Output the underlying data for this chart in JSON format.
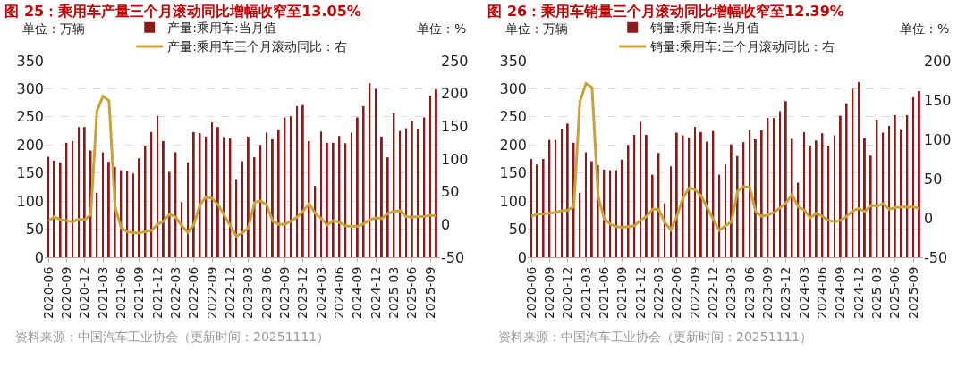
{
  "chart_data": [
    {
      "type": "bar",
      "title": "图 25：乘用车产量三个月滚动同比增幅收窄至13.05%",
      "ylabel": "单位：万辆",
      "y2label": "单位：%",
      "categories": [
        "2020-06",
        null,
        null,
        "2020-09",
        null,
        null,
        "2020-12",
        null,
        null,
        "2021-03",
        null,
        null,
        "2021-06",
        null,
        null,
        "2021-09",
        null,
        null,
        "2021-12",
        null,
        null,
        "2022-03",
        null,
        null,
        "2022-06",
        null,
        null,
        "2022-09",
        null,
        null,
        "2022-12",
        null,
        null,
        "2023-03",
        null,
        null,
        "2023-06",
        null,
        null,
        "2023-09",
        null,
        null,
        "2023-12",
        null,
        null,
        "2024-03",
        null,
        null,
        "2024-06",
        null,
        null,
        "2024-09",
        null,
        null,
        "2024-12",
        null,
        null,
        "2025-03",
        null,
        null,
        "2025-06",
        null,
        null,
        "2025-09",
        null
      ],
      "series": [
        {
          "name": "产量:乘用车:当月值",
          "color": "#8b1a1a",
          "values": [
            179,
            172,
            169,
            204,
            207,
            232,
            232,
            190,
            115,
            187,
            170,
            161,
            155,
            153,
            149,
            176,
            198,
            223,
            252,
            207,
            152,
            187,
            98,
            169,
            223,
            221,
            215,
            240,
            232,
            214,
            212,
            139,
            171,
            215,
            178,
            200,
            222,
            210,
            227,
            249,
            251,
            269,
            271,
            207,
            127,
            224,
            204,
            204,
            216,
            203,
            222,
            249,
            269,
            310,
            300,
            215,
            178,
            257,
            225,
            230,
            243,
            229,
            249,
            288,
            299
          ]
        },
        {
          "name": "产量:乘用车三个月滚动同比：右",
          "type": "line",
          "axis": "y2",
          "color": "#c9a23a",
          "values": [
            5,
            12,
            7,
            6,
            4,
            8,
            7,
            15,
            173,
            196,
            189,
            27,
            -5,
            -11,
            -13,
            -13,
            -11,
            -9,
            0,
            5,
            16,
            11,
            -2,
            -12,
            0,
            30,
            42,
            40,
            30,
            14,
            -2,
            -18,
            -13,
            -5,
            34,
            36,
            30,
            5,
            0,
            0,
            5,
            11,
            20,
            32,
            17,
            9,
            -1,
            6,
            3,
            -2,
            -3,
            -3,
            1,
            7,
            10,
            9,
            17,
            20,
            21,
            12,
            11,
            12,
            12,
            14,
            13
          ]
        }
      ],
      "ylim": [
        0,
        350
      ],
      "yticks": [
        0,
        50,
        100,
        150,
        200,
        250,
        300,
        350
      ],
      "y2lim": [
        -50,
        250
      ],
      "y2ticks": [
        -50,
        0,
        50,
        100,
        150,
        200,
        250
      ],
      "grid": "y",
      "legend": "top",
      "annotations": [
        "资料来源：中国汽车工业协会（更新时间：20251111）"
      ]
    },
    {
      "type": "bar",
      "title": "图 26：乘用车销量三个月滚动同比增幅收窄至12.39%",
      "ylabel": "单位：万辆",
      "y2label": "单位：%",
      "categories": [
        "2020-06",
        null,
        null,
        "2020-09",
        null,
        null,
        "2020-12",
        null,
        null,
        "2021-03",
        null,
        null,
        "2021-06",
        null,
        null,
        "2021-09",
        null,
        null,
        "2021-12",
        null,
        null,
        "2022-03",
        null,
        null,
        "2022-06",
        null,
        null,
        "2022-09",
        null,
        null,
        "2022-12",
        null,
        null,
        "2023-03",
        null,
        null,
        "2023-06",
        null,
        null,
        "2023-09",
        null,
        null,
        "2023-12",
        null,
        null,
        "2024-03",
        null,
        null,
        "2024-06",
        null,
        null,
        "2024-09",
        null,
        null,
        "2024-12",
        null,
        null,
        "2025-03",
        null,
        null,
        "2025-06",
        null,
        null,
        "2025-09",
        null
      ],
      "series": [
        {
          "name": "销量:乘用车:当月值",
          "color": "#8b1a1a",
          "values": [
            175,
            165,
            175,
            209,
            209,
            229,
            238,
            204,
            115,
            187,
            171,
            164,
            156,
            155,
            155,
            174,
            200,
            218,
            241,
            218,
            147,
            186,
            96,
            162,
            222,
            217,
            213,
            232,
            223,
            206,
            225,
            147,
            165,
            201,
            180,
            205,
            226,
            210,
            226,
            248,
            248,
            260,
            278,
            211,
            133,
            223,
            199,
            208,
            221,
            199,
            217,
            252,
            274,
            300,
            312,
            212,
            181,
            245,
            222,
            234,
            253,
            228,
            253,
            285,
            296
          ]
        },
        {
          "name": "销量:乘用车:三个月滚动同比：右",
          "type": "line",
          "axis": "y2",
          "color": "#c9a23a",
          "values": [
            2,
            5,
            5,
            6,
            7,
            9,
            10,
            14,
            148,
            171,
            166,
            28,
            -1,
            -8,
            -11,
            -12,
            -11,
            -10,
            -3,
            2,
            11,
            11,
            -6,
            -15,
            2,
            25,
            38,
            36,
            28,
            13,
            -2,
            -16,
            -10,
            -5,
            34,
            40,
            39,
            8,
            2,
            4,
            7,
            13,
            19,
            30,
            14,
            10,
            0,
            6,
            2,
            -3,
            -5,
            -3,
            2,
            9,
            12,
            8,
            16,
            15,
            18,
            11,
            13,
            14,
            14,
            14,
            12
          ]
        }
      ],
      "ylim": [
        0,
        350
      ],
      "yticks": [
        0,
        50,
        100,
        150,
        200,
        250,
        300,
        350
      ],
      "y2lim": [
        -50,
        200
      ],
      "y2ticks": [
        -50,
        0,
        50,
        100,
        150,
        200
      ],
      "grid": "y",
      "legend": "top",
      "annotations": [
        "资料来源：中国汽车工业协会（更新时间：20251111）"
      ]
    }
  ]
}
